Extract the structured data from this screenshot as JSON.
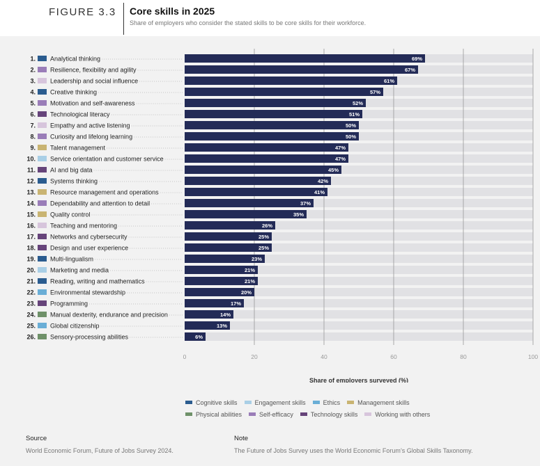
{
  "figure": {
    "label": "FIGURE 3.3",
    "title": "Core skills in 2025",
    "subtitle": "Share of employers who consider the stated skills to be core skills for their workforce."
  },
  "colors": {
    "bar": "#232b57",
    "track": "#e1e1e4",
    "grid": "#999999",
    "dotted_leader": "#b5b5b5"
  },
  "chart_data": {
    "type": "bar",
    "orientation": "horizontal",
    "xlabel": "Share of employers surveyed (%)",
    "xlim": [
      0,
      100
    ],
    "xticks": [
      "0",
      "20",
      "40",
      "60",
      "80",
      "100"
    ],
    "grid": true,
    "categories": [
      "Analytical thinking",
      "Resilience, flexibility and agility",
      "Leadership and social influence",
      "Creative thinking",
      "Motivation and self-awareness",
      "Technological literacy",
      "Empathy and active listening",
      "Curiosity and lifelong learning",
      "Talent management",
      "Service orientation and customer service",
      "AI and big data",
      "Systems thinking",
      "Resource management and operations",
      "Dependability and attention to detail",
      "Quality control",
      "Teaching and mentoring",
      "Networks and cybersecurity",
      "Design and user experience",
      "Multi-lingualism",
      "Marketing and media",
      "Reading, writing and mathematics",
      "Environmental stewardship",
      "Programming",
      "Manual dexterity, endurance and precision",
      "Global citizenship",
      "Sensory-processing abilities"
    ],
    "ranks": [
      "1.",
      "2.",
      "3.",
      "4.",
      "5.",
      "6.",
      "7.",
      "8.",
      "9.",
      "10.",
      "11.",
      "12.",
      "13.",
      "14.",
      "15.",
      "16.",
      "17.",
      "18.",
      "19.",
      "20.",
      "21.",
      "22.",
      "23.",
      "24.",
      "25.",
      "26."
    ],
    "values": [
      69,
      67,
      61,
      57,
      52,
      51,
      50,
      50,
      47,
      47,
      45,
      42,
      41,
      37,
      35,
      26,
      25,
      25,
      23,
      21,
      21,
      20,
      17,
      14,
      13,
      6
    ],
    "value_labels": [
      "69%",
      "67%",
      "61%",
      "57%",
      "52%",
      "51%",
      "50%",
      "50%",
      "47%",
      "47%",
      "45%",
      "42%",
      "41%",
      "37%",
      "35%",
      "26%",
      "25%",
      "25%",
      "23%",
      "21%",
      "21%",
      "20%",
      "17%",
      "14%",
      "13%",
      "6%"
    ],
    "skill_groups": [
      "Cognitive skills",
      "Self-efficacy",
      "Working with others",
      "Cognitive skills",
      "Self-efficacy",
      "Technology skills",
      "Working with others",
      "Self-efficacy",
      "Management skills",
      "Engagement skills",
      "Technology skills",
      "Cognitive skills",
      "Management skills",
      "Self-efficacy",
      "Management skills",
      "Working with others",
      "Technology skills",
      "Technology skills",
      "Cognitive skills",
      "Engagement skills",
      "Cognitive skills",
      "Ethics",
      "Technology skills",
      "Physical abilities",
      "Ethics",
      "Physical abilities"
    ]
  },
  "legend": {
    "rows": [
      [
        {
          "label": "Cognitive skills",
          "color": "#2b5c8f"
        },
        {
          "label": "Engagement skills",
          "color": "#a9cfe6"
        },
        {
          "label": "Ethics",
          "color": "#6aaed6"
        },
        {
          "label": "Management skills",
          "color": "#c9b472"
        }
      ],
      [
        {
          "label": "Physical abilities",
          "color": "#6f9169"
        },
        {
          "label": "Self-efficacy",
          "color": "#9a7db8"
        },
        {
          "label": "Technology skills",
          "color": "#66447a"
        },
        {
          "label": "Working with others",
          "color": "#d7c5dc"
        }
      ]
    ]
  },
  "footer": {
    "source_heading": "Source",
    "source_text": "World Economic Forum, Future of Jobs Survey 2024.",
    "note_heading": "Note",
    "note_text": "The Future of Jobs Survey uses the World Economic Forum’s Global Skills Taxonomy."
  }
}
